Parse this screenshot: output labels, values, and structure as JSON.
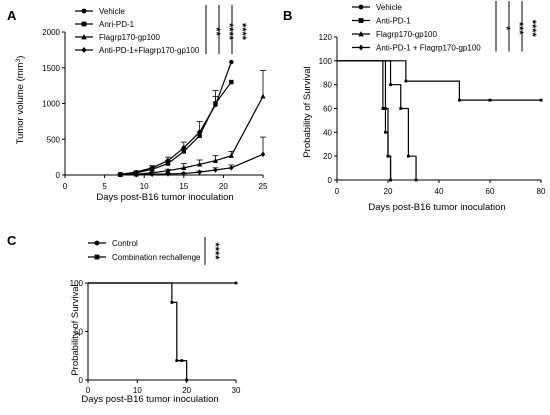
{
  "panels": {
    "a": {
      "letter": "A"
    },
    "b": {
      "letter": "B"
    },
    "c": {
      "letter": "C"
    }
  },
  "chart_data": [
    {
      "type": "line",
      "panel": "A",
      "xlabel": "Days post-B16 tumor inoculation",
      "ylabel": "Tumor volume (mm3)",
      "xlim": [
        0,
        25
      ],
      "ylim": [
        0,
        2000
      ],
      "xticks": [
        0,
        5,
        10,
        15,
        20,
        25
      ],
      "yticks": [
        0,
        500,
        1000,
        1500,
        2000
      ],
      "series": [
        {
          "name": "Vehicle",
          "marker": "circle",
          "x": [
            7,
            9,
            11,
            13,
            15,
            17,
            19,
            21
          ],
          "y": [
            10,
            40,
            100,
            200,
            380,
            600,
            980,
            1580
          ],
          "err": [
            5,
            15,
            30,
            50,
            80,
            150,
            200,
            0
          ]
        },
        {
          "name": "Anri-PD-1",
          "marker": "square",
          "x": [
            7,
            9,
            11,
            13,
            15,
            17,
            19,
            21
          ],
          "y": [
            10,
            30,
            80,
            160,
            330,
            550,
            1000,
            1300
          ],
          "err": [
            5,
            10,
            20,
            40,
            40,
            50,
            100,
            0
          ]
        },
        {
          "name": "Flagrp170-gp100",
          "marker": "triangle",
          "x": [
            7,
            9,
            11,
            13,
            15,
            17,
            19,
            21,
            25
          ],
          "y": [
            5,
            10,
            30,
            60,
            100,
            150,
            200,
            270,
            1100
          ],
          "err": [
            2,
            5,
            10,
            20,
            60,
            60,
            70,
            60,
            360
          ]
        },
        {
          "name": "Anti-PD-1+Flagrp170-gp100",
          "marker": "diamond",
          "x": [
            7,
            9,
            11,
            13,
            15,
            17,
            19,
            21,
            25
          ],
          "y": [
            2,
            5,
            10,
            15,
            20,
            40,
            70,
            100,
            290
          ],
          "err": [
            1,
            2,
            3,
            5,
            10,
            15,
            30,
            40,
            240
          ]
        }
      ],
      "significance": [
        "**",
        "****",
        "****"
      ]
    },
    {
      "type": "line",
      "panel": "B",
      "xlabel": "Days post-B16 tumor inoculation",
      "ylabel": "Probability of Survival",
      "xlim": [
        0,
        80
      ],
      "ylim": [
        0,
        120
      ],
      "xticks": [
        0,
        20,
        40,
        60,
        80
      ],
      "yticks": [
        0,
        20,
        40,
        60,
        80,
        100,
        120
      ],
      "series": [
        {
          "name": "Vehicle",
          "step": true,
          "x": [
            0,
            19,
            20,
            21
          ],
          "y": [
            100,
            60,
            20,
            0
          ]
        },
        {
          "name": "Anti-PD-1",
          "step": true,
          "x": [
            0,
            18,
            19,
            20,
            21
          ],
          "y": [
            100,
            60,
            40,
            20,
            0
          ]
        },
        {
          "name": "Flagrp170-gp100",
          "step": true,
          "x": [
            0,
            21,
            25,
            28,
            31
          ],
          "y": [
            100,
            80,
            60,
            20,
            0
          ]
        },
        {
          "name": "Anti-PD-1 + Flagrp170-gp100",
          "step": true,
          "x": [
            0,
            27,
            48,
            60,
            80
          ],
          "y": [
            100,
            83,
            67,
            67,
            67
          ]
        }
      ],
      "significance": [
        "*",
        "***",
        "****"
      ]
    },
    {
      "type": "line",
      "panel": "C",
      "xlabel": "Days post-B16 tumor inoculation",
      "ylabel": "Probability of Survival",
      "xlim": [
        0,
        30
      ],
      "ylim": [
        0,
        100
      ],
      "xticks": [
        0,
        10,
        20,
        30
      ],
      "yticks": [
        0,
        50,
        100
      ],
      "series": [
        {
          "name": "Control",
          "step": true,
          "x": [
            0,
            17,
            18,
            19,
            20
          ],
          "y": [
            100,
            80,
            20,
            20,
            0
          ]
        },
        {
          "name": "Combination rechallenge",
          "step": true,
          "x": [
            0,
            30
          ],
          "y": [
            100,
            100
          ]
        }
      ],
      "significance": [
        "****"
      ]
    }
  ]
}
